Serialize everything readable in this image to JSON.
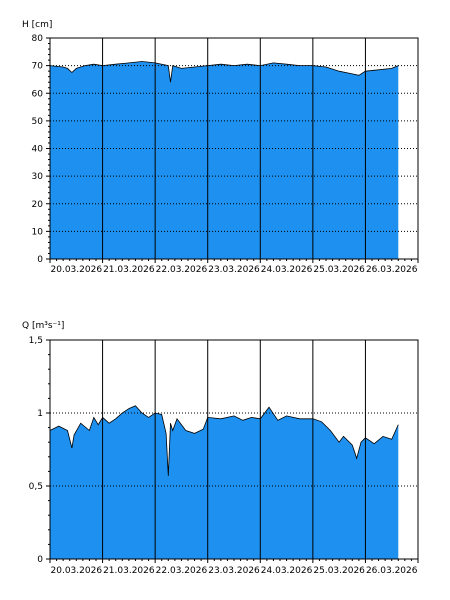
{
  "chart_data": [
    {
      "type": "area",
      "ylabel": "H [cm]",
      "ylim": [
        0,
        80
      ],
      "yticks": [
        "0",
        "10",
        "20",
        "30",
        "40",
        "50",
        "60",
        "70",
        "80"
      ],
      "xlim": [
        "20.03.2026 00:00",
        "27.03.2026 00:00"
      ],
      "x_tick_labels": [
        "20.03.2026",
        "21.03.2026",
        "22.03.2026",
        "23.03.2026",
        "24.03.2026",
        "25.03.2026",
        "26.03.2026"
      ],
      "day_lines": [
        "21.03.2026",
        "22.03.2026",
        "23.03.2026",
        "24.03.2026",
        "25.03.2026",
        "26.03.2026"
      ],
      "grid": "horizontal dotted",
      "fill_color": "#1e90f0",
      "series": [
        {
          "x": [
            "20.03 00:00",
            "20.03 06:00",
            "20.03 08:00",
            "20.03 10:00",
            "20.03 12:00",
            "20.03 16:00",
            "20.03 20:00",
            "21.03 00:00",
            "21.03 06:00",
            "21.03 12:00",
            "21.03 18:00",
            "22.03 00:00",
            "22.03 06:00",
            "22.03 07:00",
            "22.03 08:00",
            "22.03 12:00",
            "22.03 18:00",
            "23.03 00:00",
            "23.03 06:00",
            "23.03 12:00",
            "23.03 18:00",
            "24.03 00:00",
            "24.03 06:00",
            "24.03 12:00",
            "24.03 18:00",
            "25.03 00:00",
            "25.03 06:00",
            "25.03 12:00",
            "25.03 18:00",
            "25.03 21:00",
            "26.03 00:00",
            "26.03 06:00",
            "26.03 12:00",
            "26.03 15:00"
          ],
          "y": [
            70,
            69.5,
            69,
            67.5,
            69,
            70,
            70.5,
            70,
            70.5,
            71,
            71.5,
            71,
            70,
            64,
            70,
            69,
            69.5,
            70,
            70.5,
            70,
            70.5,
            70,
            71,
            70.5,
            70,
            70,
            69.5,
            68,
            67,
            66.5,
            68,
            68.5,
            69,
            70
          ]
        }
      ]
    },
    {
      "type": "area",
      "ylabel": "Q [m³s⁻¹]",
      "ylim": [
        0,
        1.5
      ],
      "yticks": [
        "0",
        "0,5",
        "1",
        "1,5"
      ],
      "xlim": [
        "20.03.2026 00:00",
        "27.03.2026 00:00"
      ],
      "x_tick_labels": [
        "20.03.2026",
        "21.03.2026",
        "22.03.2026",
        "23.03.2026",
        "24.03.2026",
        "25.03.2026",
        "26.03.2026"
      ],
      "day_lines": [
        "21.03.2026",
        "22.03.2026",
        "23.03.2026",
        "24.03.2026",
        "25.03.2026",
        "26.03.2026"
      ],
      "grid": "horizontal dotted",
      "fill_color": "#1e90f0",
      "series": [
        {
          "x": [
            "20.03 00:00",
            "20.03 04:00",
            "20.03 08:00",
            "20.03 10:00",
            "20.03 11:00",
            "20.03 14:00",
            "20.03 18:00",
            "20.03 20:00",
            "20.03 22:00",
            "21.03 00:00",
            "21.03 03:00",
            "21.03 06:00",
            "21.03 09:00",
            "21.03 12:00",
            "21.03 15:00",
            "21.03 18:00",
            "21.03 21:00",
            "22.03 00:00",
            "22.03 03:00",
            "22.03 05:00",
            "22.03 06:00",
            "22.03 07:00",
            "22.03 08:00",
            "22.03 10:00",
            "22.03 14:00",
            "22.03 18:00",
            "22.03 22:00",
            "23.03 00:00",
            "23.03 06:00",
            "23.03 12:00",
            "23.03 16:00",
            "23.03 20:00",
            "24.03 00:00",
            "24.03 04:00",
            "24.03 08:00",
            "24.03 12:00",
            "24.03 18:00",
            "25.03 00:00",
            "25.03 04:00",
            "25.03 08:00",
            "25.03 12:00",
            "25.03 14:00",
            "25.03 18:00",
            "25.03 20:00",
            "25.03 22:00",
            "26.03 00:00",
            "26.03 04:00",
            "26.03 08:00",
            "26.03 12:00",
            "26.03 15:00"
          ],
          "y": [
            0.88,
            0.91,
            0.88,
            0.76,
            0.85,
            0.93,
            0.88,
            0.97,
            0.92,
            0.97,
            0.93,
            0.96,
            1.0,
            1.03,
            1.05,
            1.0,
            0.97,
            1.0,
            0.99,
            0.86,
            0.57,
            0.93,
            0.88,
            0.96,
            0.88,
            0.86,
            0.89,
            0.97,
            0.96,
            0.98,
            0.95,
            0.97,
            0.96,
            1.04,
            0.95,
            0.98,
            0.96,
            0.96,
            0.94,
            0.88,
            0.8,
            0.84,
            0.78,
            0.69,
            0.8,
            0.83,
            0.79,
            0.84,
            0.82,
            0.92
          ]
        }
      ]
    }
  ]
}
